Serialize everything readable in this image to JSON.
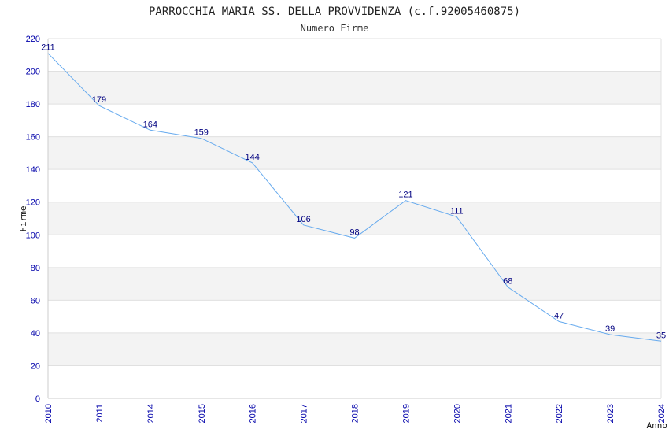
{
  "chart_data": {
    "type": "line",
    "title": "PARROCCHIA MARIA SS. DELLA PROVVIDENZA (c.f.92005460875)",
    "subtitle": "Numero Firme",
    "xlabel": "Anno",
    "ylabel": "Firme",
    "categories": [
      "2010",
      "2011",
      "2014",
      "2015",
      "2016",
      "2017",
      "2018",
      "2019",
      "2020",
      "2021",
      "2022",
      "2023",
      "2024"
    ],
    "values": [
      211,
      179,
      164,
      159,
      144,
      106,
      98,
      121,
      111,
      68,
      47,
      39,
      35
    ],
    "ylim": [
      0,
      220
    ],
    "yticks": [
      0,
      20,
      40,
      60,
      80,
      100,
      120,
      140,
      160,
      180,
      200,
      220
    ],
    "grid": true,
    "band_colors": [
      "#ffffff",
      "#f3f3f3"
    ],
    "line_color": "#66aaee",
    "tick_color": "#0000aa",
    "label_color": "#000080"
  }
}
